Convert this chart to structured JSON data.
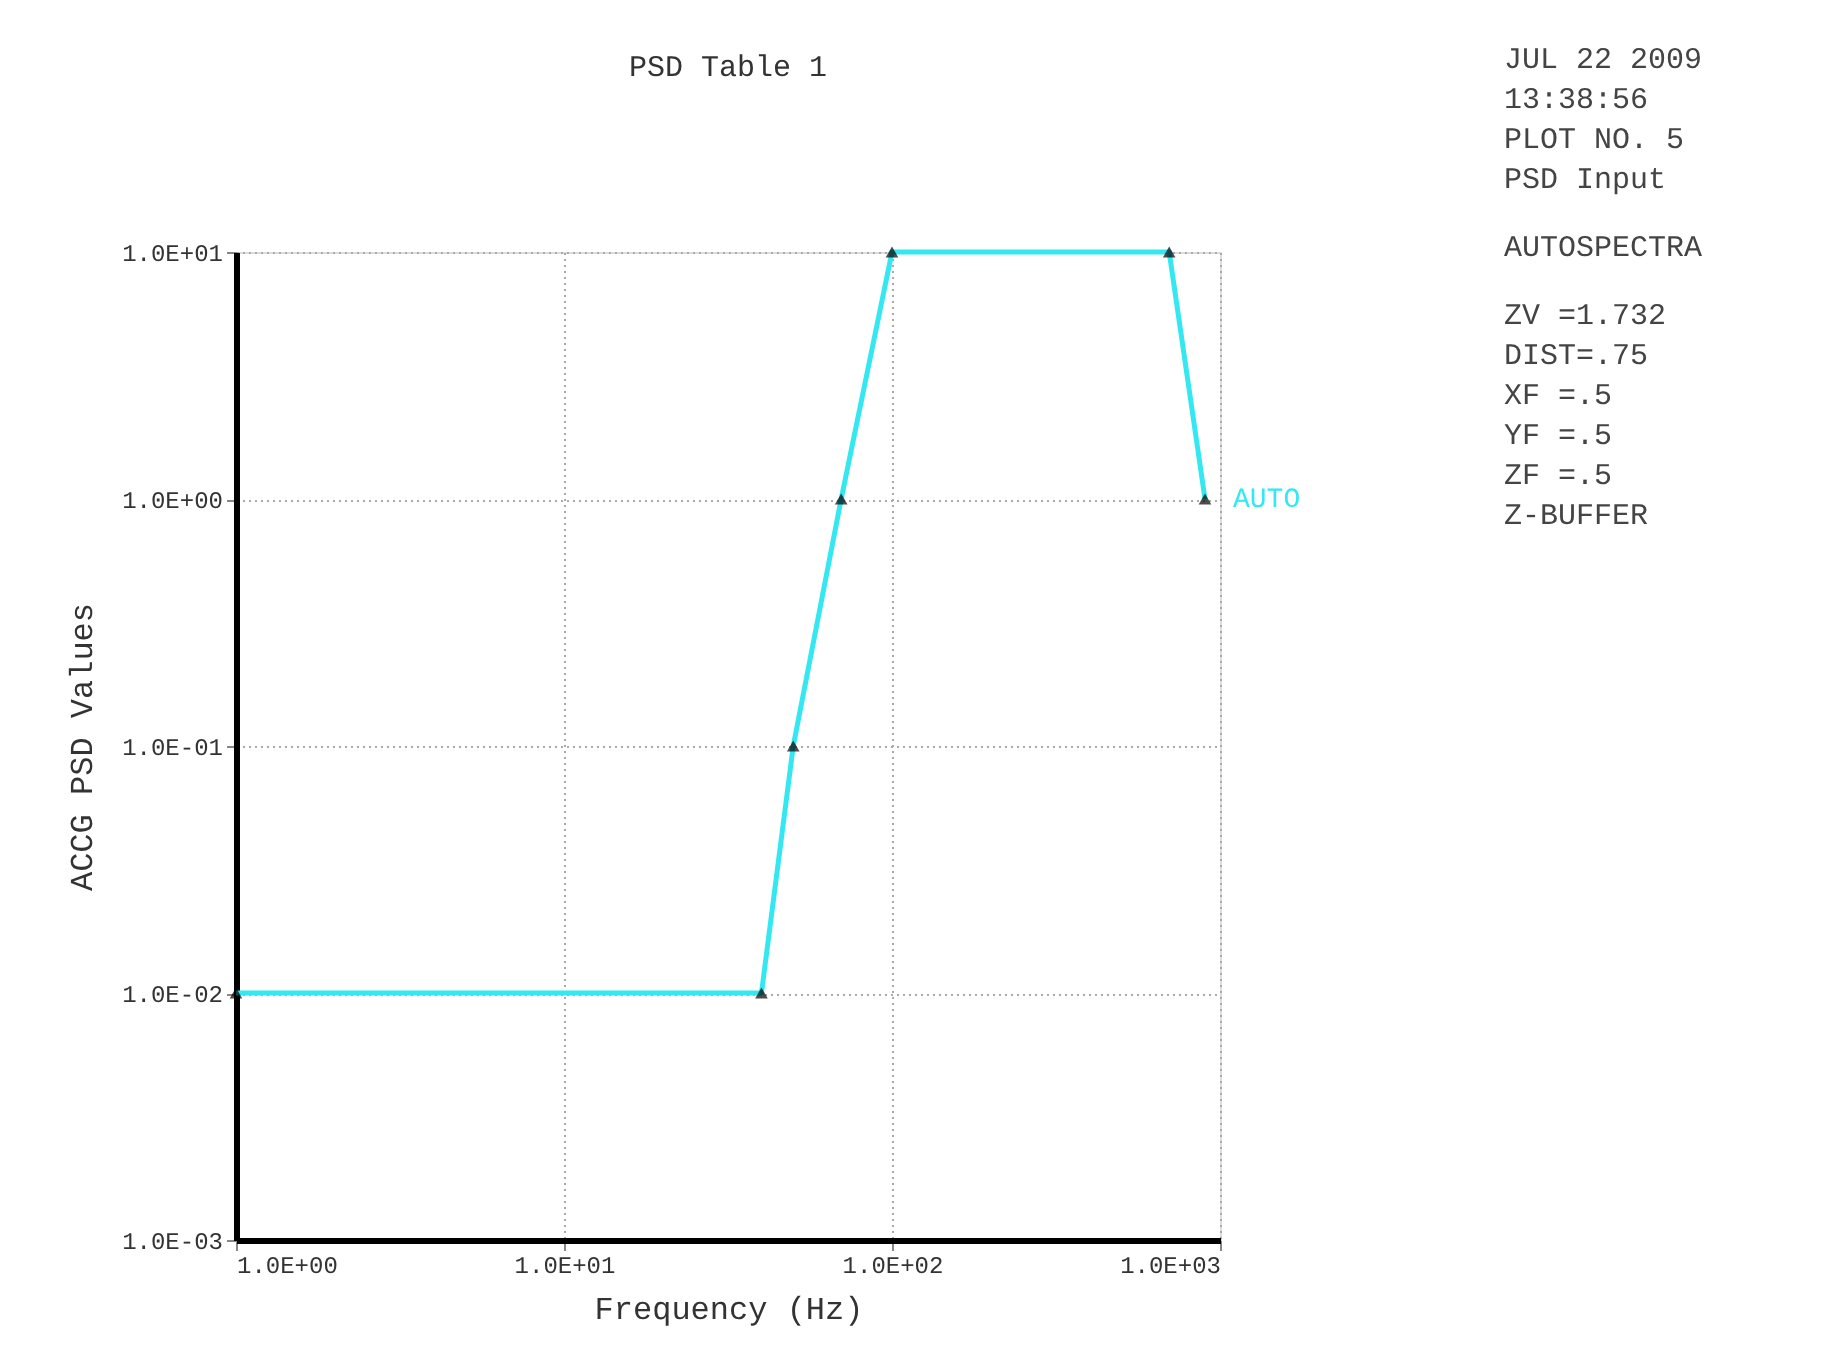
{
  "chart_data": {
    "type": "line",
    "title": "PSD Table  1",
    "xlabel": "Frequency (Hz)",
    "ylabel": "ACCG PSD Values",
    "x": [
      1,
      40,
      50,
      70,
      100,
      700,
      900
    ],
    "series": [
      {
        "name": "AUTO",
        "color": "#33e8f0",
        "values": [
          0.01,
          0.01,
          0.1,
          1,
          10,
          10,
          1
        ]
      }
    ],
    "xlim": [
      1,
      1000
    ],
    "ylim": [
      0.001,
      10
    ],
    "log": "xy",
    "xticks": [
      {
        "value": 1,
        "label": "1.0E+00"
      },
      {
        "value": 10,
        "label": "1.0E+01"
      },
      {
        "value": 100,
        "label": "1.0E+02"
      },
      {
        "value": 1000,
        "label": "1.0E+03"
      }
    ],
    "yticks": [
      {
        "value": 0.001,
        "label": "1.0E-03"
      },
      {
        "value": 0.01,
        "label": "1.0E-02"
      },
      {
        "value": 0.1,
        "label": "1.0E-01"
      },
      {
        "value": 1,
        "label": "1.0E+00"
      },
      {
        "value": 10,
        "label": "1.0E+01"
      }
    ],
    "grid": true,
    "marker": "triangle",
    "line_style": "solid",
    "legend": false,
    "annotations": [
      "JUL 22 2009",
      "13:38:56",
      "PLOT NO.    5",
      "PSD Input",
      "AUTOSPECTRA",
      "ZV   =1.732",
      "DIST=.75",
      "XF   =.5",
      "YF   =.5",
      "ZF   =.5",
      "Z-BUFFER"
    ]
  }
}
